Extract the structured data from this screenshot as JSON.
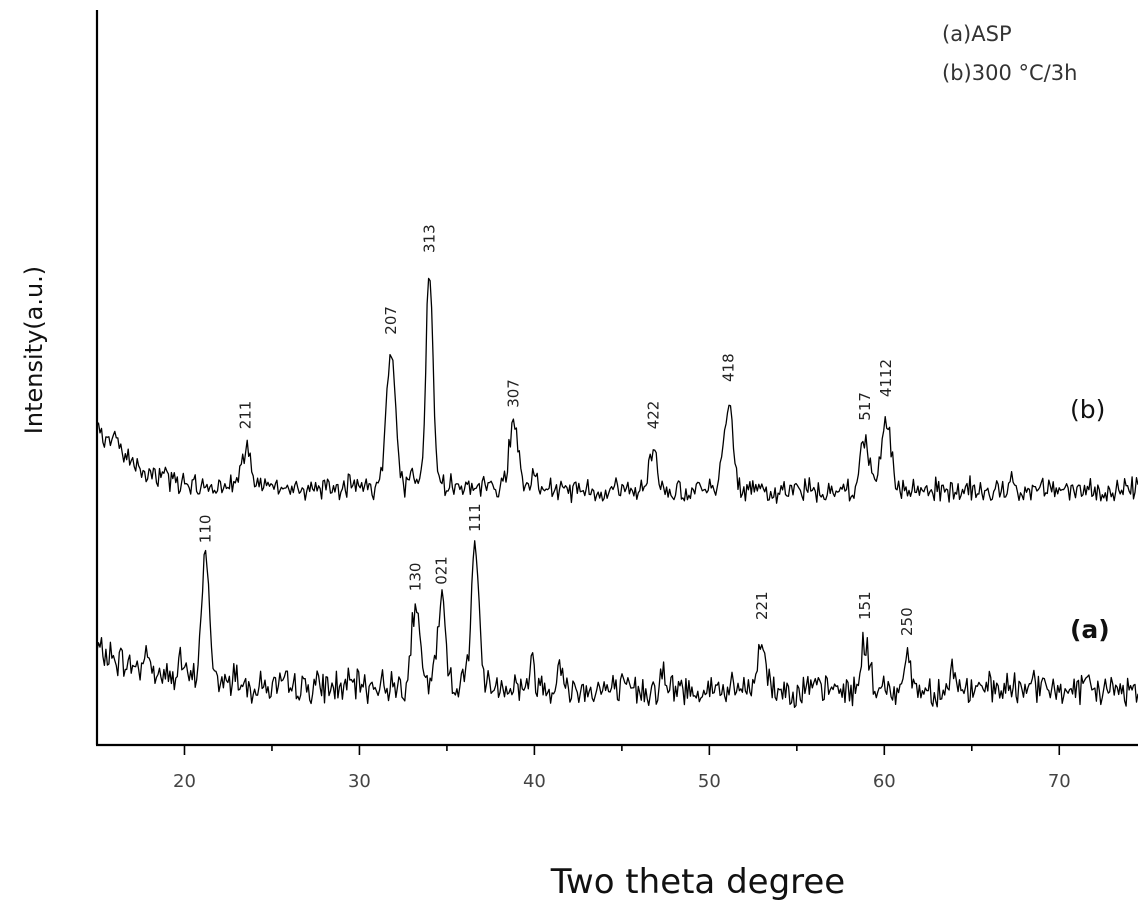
{
  "chart_data": {
    "type": "line",
    "title": "",
    "xlabel": "Two theta degree",
    "ylabel": "Intensity(a.u.)",
    "xlim": [
      15,
      74.5
    ],
    "xticks": [
      20,
      30,
      40,
      50,
      60,
      70
    ],
    "grid": false,
    "legend": {
      "placement": "top-right",
      "entries": [
        "(a)ASP",
        "(b)300 °C/3h"
      ]
    },
    "series": [
      {
        "label": "(a)",
        "peaks": [
          {
            "x": 21.2,
            "label": "110",
            "height": 0.78
          },
          {
            "x": 33.2,
            "label": "130",
            "height": 0.48
          },
          {
            "x": 34.7,
            "label": "021",
            "height": 0.52
          },
          {
            "x": 36.6,
            "label": "111",
            "height": 0.85
          },
          {
            "x": 53.0,
            "label": "221",
            "height": 0.3
          },
          {
            "x": 58.9,
            "label": "151",
            "height": 0.3
          },
          {
            "x": 61.3,
            "label": "250",
            "height": 0.2
          }
        ]
      },
      {
        "label": "(b)",
        "peaks": [
          {
            "x": 23.5,
            "label": "211",
            "height": 0.18
          },
          {
            "x": 31.8,
            "label": "207",
            "height": 0.62
          },
          {
            "x": 34.0,
            "label": "313",
            "height": 1.0
          },
          {
            "x": 38.8,
            "label": "307",
            "height": 0.28
          },
          {
            "x": 46.8,
            "label": "422",
            "height": 0.18
          },
          {
            "x": 51.1,
            "label": "418",
            "height": 0.4
          },
          {
            "x": 58.9,
            "label": "517",
            "height": 0.22
          },
          {
            "x": 60.1,
            "label": "4112",
            "height": 0.33
          }
        ]
      }
    ]
  }
}
